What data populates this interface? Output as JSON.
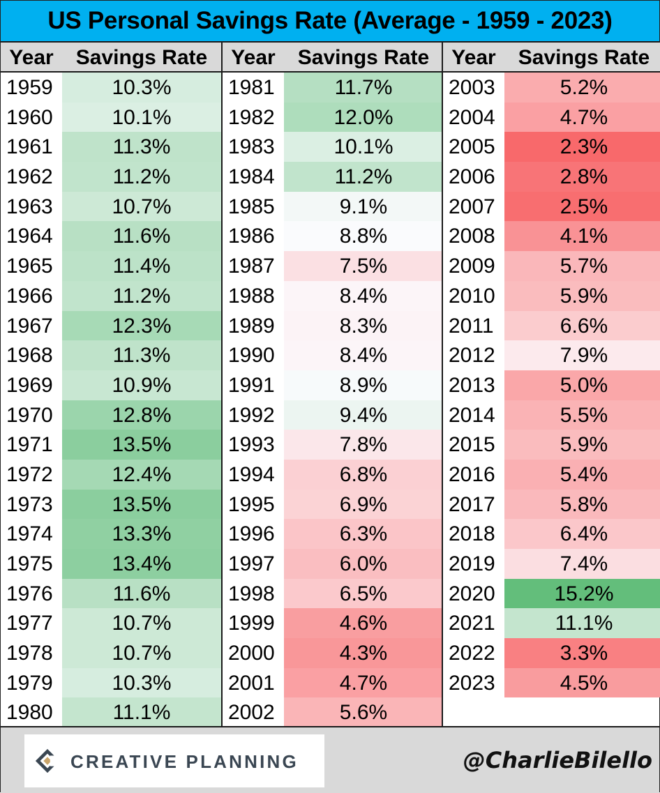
{
  "title": "US Personal Savings Rate (Average - 1959 - 2023)",
  "headers": {
    "year": "Year",
    "rate": "Savings Rate"
  },
  "columns": [
    {
      "rows": [
        {
          "year": "1959",
          "rate": "10.3%"
        },
        {
          "year": "1960",
          "rate": "10.1%"
        },
        {
          "year": "1961",
          "rate": "11.3%"
        },
        {
          "year": "1962",
          "rate": "11.2%"
        },
        {
          "year": "1963",
          "rate": "10.7%"
        },
        {
          "year": "1964",
          "rate": "11.6%"
        },
        {
          "year": "1965",
          "rate": "11.4%"
        },
        {
          "year": "1966",
          "rate": "11.2%"
        },
        {
          "year": "1967",
          "rate": "12.3%"
        },
        {
          "year": "1968",
          "rate": "11.3%"
        },
        {
          "year": "1969",
          "rate": "10.9%"
        },
        {
          "year": "1970",
          "rate": "12.8%"
        },
        {
          "year": "1971",
          "rate": "13.5%"
        },
        {
          "year": "1972",
          "rate": "12.4%"
        },
        {
          "year": "1973",
          "rate": "13.5%"
        },
        {
          "year": "1974",
          "rate": "13.3%"
        },
        {
          "year": "1975",
          "rate": "13.4%"
        },
        {
          "year": "1976",
          "rate": "11.6%"
        },
        {
          "year": "1977",
          "rate": "10.7%"
        },
        {
          "year": "1978",
          "rate": "10.7%"
        },
        {
          "year": "1979",
          "rate": "10.3%"
        },
        {
          "year": "1980",
          "rate": "11.1%"
        }
      ]
    },
    {
      "rows": [
        {
          "year": "1981",
          "rate": "11.7%"
        },
        {
          "year": "1982",
          "rate": "12.0%"
        },
        {
          "year": "1983",
          "rate": "10.1%"
        },
        {
          "year": "1984",
          "rate": "11.2%"
        },
        {
          "year": "1985",
          "rate": "9.1%"
        },
        {
          "year": "1986",
          "rate": "8.8%"
        },
        {
          "year": "1987",
          "rate": "7.5%"
        },
        {
          "year": "1988",
          "rate": "8.4%"
        },
        {
          "year": "1989",
          "rate": "8.3%"
        },
        {
          "year": "1990",
          "rate": "8.4%"
        },
        {
          "year": "1991",
          "rate": "8.9%"
        },
        {
          "year": "1992",
          "rate": "9.4%"
        },
        {
          "year": "1993",
          "rate": "7.8%"
        },
        {
          "year": "1994",
          "rate": "6.8%"
        },
        {
          "year": "1995",
          "rate": "6.9%"
        },
        {
          "year": "1996",
          "rate": "6.3%"
        },
        {
          "year": "1997",
          "rate": "6.0%"
        },
        {
          "year": "1998",
          "rate": "6.5%"
        },
        {
          "year": "1999",
          "rate": "4.6%"
        },
        {
          "year": "2000",
          "rate": "4.3%"
        },
        {
          "year": "2001",
          "rate": "4.7%"
        },
        {
          "year": "2002",
          "rate": "5.6%"
        }
      ]
    },
    {
      "rows": [
        {
          "year": "2003",
          "rate": "5.2%"
        },
        {
          "year": "2004",
          "rate": "4.7%"
        },
        {
          "year": "2005",
          "rate": "2.3%"
        },
        {
          "year": "2006",
          "rate": "2.8%"
        },
        {
          "year": "2007",
          "rate": "2.5%"
        },
        {
          "year": "2008",
          "rate": "4.1%"
        },
        {
          "year": "2009",
          "rate": "5.7%"
        },
        {
          "year": "2010",
          "rate": "5.9%"
        },
        {
          "year": "2011",
          "rate": "6.6%"
        },
        {
          "year": "2012",
          "rate": "7.9%"
        },
        {
          "year": "2013",
          "rate": "5.0%"
        },
        {
          "year": "2014",
          "rate": "5.5%"
        },
        {
          "year": "2015",
          "rate": "5.9%"
        },
        {
          "year": "2016",
          "rate": "5.4%"
        },
        {
          "year": "2017",
          "rate": "5.8%"
        },
        {
          "year": "2018",
          "rate": "6.4%"
        },
        {
          "year": "2019",
          "rate": "7.4%"
        },
        {
          "year": "2020",
          "rate": "15.2%"
        },
        {
          "year": "2021",
          "rate": "11.1%"
        },
        {
          "year": "2022",
          "rate": "3.3%"
        },
        {
          "year": "2023",
          "rate": "4.5%"
        }
      ]
    }
  ],
  "color_scale": {
    "midpoint": 8.7,
    "low_color": "#f8696b",
    "mid_color": "#fcfcff",
    "high_color": "#63be7b"
  },
  "footer": {
    "logo_text": "CREATIVE PLANNING",
    "logo_icon": "creative-planning-logo-icon",
    "handle": "@CharlieBilello"
  }
}
